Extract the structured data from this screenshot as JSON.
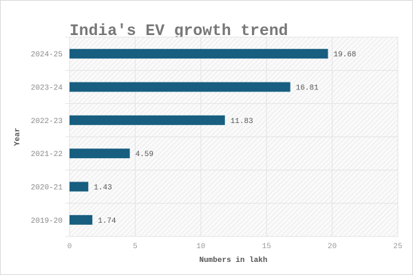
{
  "chart_data": {
    "type": "bar",
    "orientation": "horizontal",
    "title": "India's EV growth trend",
    "xlabel": "Numbers in lakh",
    "ylabel": "Year",
    "categories": [
      "2019-20",
      "2020-21",
      "2021-22",
      "2022-23",
      "2023-24",
      "2024-25"
    ],
    "values": [
      1.74,
      1.43,
      4.59,
      11.83,
      16.81,
      19.68
    ],
    "data_labels": [
      "1.74",
      "1.43",
      "4.59",
      "11.83",
      "16.81",
      "19.68"
    ],
    "xlim": [
      0,
      25
    ],
    "xticks": [
      "0",
      "5",
      "10",
      "15",
      "20",
      "25"
    ],
    "grid": true,
    "background": "hatched",
    "bar_color": "#175e80"
  }
}
